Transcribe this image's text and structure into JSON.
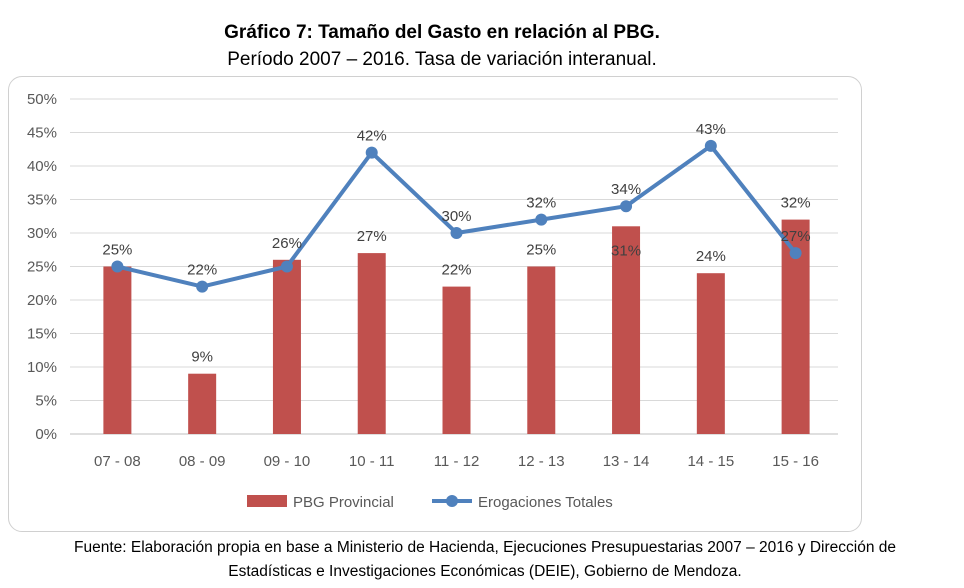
{
  "chart_data": {
    "type": "bar+line",
    "title": "Gráfico 7: Tamaño del Gasto en relación al PBG.",
    "subtitle": "Período 2007 – 2016. Tasa de variación interanual.",
    "categories": [
      "07 - 08",
      "08 - 09",
      "09 - 10",
      "10 - 11",
      "11 - 12",
      "12 - 13",
      "13 - 14",
      "14 - 15",
      "15 - 16"
    ],
    "ylim": [
      0,
      50
    ],
    "yticks": [
      "0%",
      "5%",
      "10%",
      "15%",
      "20%",
      "25%",
      "30%",
      "35%",
      "40%",
      "45%",
      "50%"
    ],
    "grid": true,
    "legend_position": "bottom",
    "series": [
      {
        "name": "PBG Provincial",
        "type": "bar",
        "color": "#c0504d",
        "values": [
          25,
          9,
          26,
          27,
          22,
          25,
          31,
          24,
          32
        ]
      },
      {
        "name": "Erogaciones Totales",
        "type": "line",
        "color": "#4f81bd",
        "values": [
          25,
          22,
          25,
          42,
          30,
          32,
          34,
          43,
          27
        ]
      }
    ],
    "data_labels": [
      {
        "category": 0,
        "series": 1,
        "text": "25%",
        "position": "above"
      },
      {
        "category": 1,
        "series": 1,
        "text": "22%",
        "position": "above"
      },
      {
        "category": 1,
        "series": 0,
        "text": "9%",
        "position": "above"
      },
      {
        "category": 2,
        "series": 0,
        "text": "26%",
        "position": "above"
      },
      {
        "category": 3,
        "series": 1,
        "text": "42%",
        "position": "above"
      },
      {
        "category": 3,
        "series": 0,
        "text": "27%",
        "position": "above"
      },
      {
        "category": 4,
        "series": 1,
        "text": "30%",
        "position": "above"
      },
      {
        "category": 4,
        "series": 0,
        "text": "22%",
        "position": "above"
      },
      {
        "category": 5,
        "series": 1,
        "text": "32%",
        "position": "above"
      },
      {
        "category": 5,
        "series": 0,
        "text": "25%",
        "position": "above"
      },
      {
        "category": 6,
        "series": 1,
        "text": "34%",
        "position": "above"
      },
      {
        "category": 6,
        "series": 0,
        "text": "31%",
        "position": "below"
      },
      {
        "category": 7,
        "series": 1,
        "text": "43%",
        "position": "above"
      },
      {
        "category": 7,
        "series": 0,
        "text": "24%",
        "position": "above"
      },
      {
        "category": 8,
        "series": 0,
        "text": "32%",
        "position": "above"
      },
      {
        "category": 8,
        "series": 1,
        "text": "27%",
        "position": "above"
      }
    ]
  },
  "source": {
    "line1": "Fuente: Elaboración propia en base a Ministerio de Hacienda, Ejecuciones Presupuestarias 2007 – 2016 y Dirección de",
    "line2": "Estadísticas e Investigaciones Económicas (DEIE), Gobierno de Mendoza."
  }
}
